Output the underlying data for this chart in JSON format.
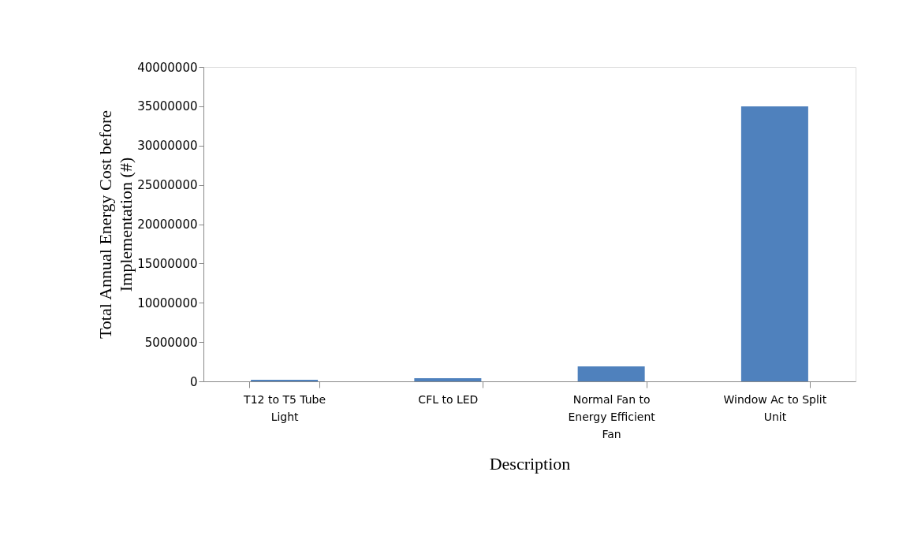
{
  "chart_data": {
    "type": "bar",
    "xlabel": "Description",
    "ylabel": "Total Annual Energy Cost before Implementation (#)",
    "categories": [
      "T12 to T5 Tube Light",
      "CFL to LED",
      "Normal Fan to Energy Efficient Fan",
      "Window Ac to Split Unit"
    ],
    "values": [
      200000,
      400000,
      1900000,
      35000000
    ],
    "color": "#4f81bd",
    "ylim": [
      0,
      40000000
    ],
    "yticks": [
      0,
      5000000,
      10000000,
      15000000,
      20000000,
      25000000,
      30000000,
      35000000,
      40000000
    ],
    "grid": false
  }
}
